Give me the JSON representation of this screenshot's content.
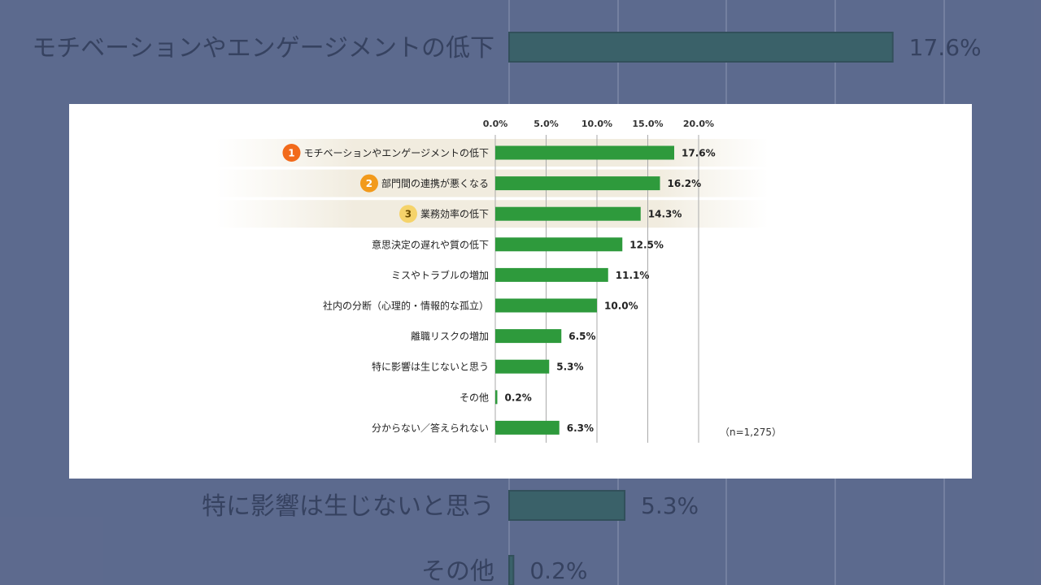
{
  "chart_data": {
    "type": "bar",
    "orientation": "horizontal",
    "categories": [
      "モチベーションやエンゲージメントの低下",
      "部門間の連携が悪くなる",
      "業務効率の低下",
      "意思決定の遅れや質の低下",
      "ミスやトラブルの増加",
      "社内の分断（心理的・情報的な孤立）",
      "離職リスクの増加",
      "特に影響は生じないと思う",
      "その他",
      "分からない／答えられない"
    ],
    "values": [
      17.6,
      16.2,
      14.3,
      12.5,
      11.1,
      10.0,
      6.5,
      5.3,
      0.2,
      6.3
    ],
    "value_labels": [
      "17.6%",
      "16.2%",
      "14.3%",
      "12.5%",
      "11.1%",
      "10.0%",
      "6.5%",
      "5.3%",
      "0.2%",
      "6.3%"
    ],
    "xlim": [
      0,
      20
    ],
    "x_ticks": [
      0,
      5,
      10,
      15,
      20
    ],
    "x_tick_labels": [
      "0.0%",
      "5.0%",
      "10.0%",
      "15.0%",
      "20.0%"
    ],
    "grid": true,
    "ranks": [
      {
        "number": "1",
        "color": "#f26a1b"
      },
      {
        "number": "2",
        "color": "#f29a1b"
      },
      {
        "number": "3",
        "color": "#f5d36a"
      }
    ],
    "note": "（n=1,275）",
    "bar_color": "#2e9a3c"
  },
  "background": {
    "labels": [
      "モチベーションやエンゲージメントの低下",
      "特に影響は生じないと思う",
      "その他"
    ],
    "value_labels": [
      "17.6%",
      "5.3%",
      "0.2%"
    ],
    "values": [
      17.6,
      5.3,
      0.2
    ]
  }
}
